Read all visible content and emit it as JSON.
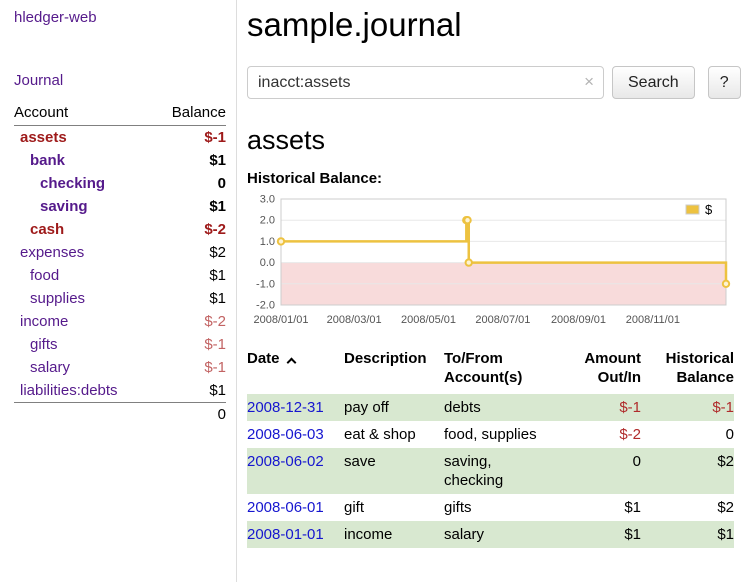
{
  "colors": {
    "link_purple": "#551a8b",
    "link_blue": "#1616cf",
    "negative_strong": "#9e1a1a",
    "negative": "#b02b2b",
    "negative_soft": "#c26363",
    "row_shade": "#d8e8d0",
    "chart_line": "#edc240",
    "chart_grid": "#e8e8e8",
    "chart_negative_area": "#f8dbdb"
  },
  "sidebar": {
    "app_title": "hledger-web",
    "journal_link": "Journal",
    "accounts_header": {
      "account": "Account",
      "balance": "Balance"
    },
    "accounts": [
      {
        "name": "assets",
        "indent": 1,
        "bold": true,
        "name_red": true,
        "balance": "$-1",
        "balance_red": true
      },
      {
        "name": "bank",
        "indent": 2,
        "bold": true,
        "name_red": false,
        "balance": "$1",
        "balance_red": false
      },
      {
        "name": "checking",
        "indent": 3,
        "bold": true,
        "name_red": false,
        "balance": "0",
        "balance_red": false
      },
      {
        "name": "saving",
        "indent": 3,
        "bold": true,
        "name_red": false,
        "balance": "$1",
        "balance_red": false
      },
      {
        "name": "cash",
        "indent": 2,
        "bold": true,
        "name_red": true,
        "balance": "$-2",
        "balance_red": true
      },
      {
        "name": "expenses",
        "indent": 1,
        "bold": false,
        "name_red": false,
        "balance": "$2",
        "balance_red": false
      },
      {
        "name": "food",
        "indent": 2,
        "bold": false,
        "name_red": false,
        "balance": "$1",
        "balance_red": false
      },
      {
        "name": "supplies",
        "indent": 2,
        "bold": false,
        "name_red": false,
        "balance": "$1",
        "balance_red": false
      },
      {
        "name": "income",
        "indent": 1,
        "bold": false,
        "name_red": false,
        "balance": "$-2",
        "balance_red": true
      },
      {
        "name": "gifts",
        "indent": 2,
        "bold": false,
        "name_red": false,
        "balance": "$-1",
        "balance_red": true
      },
      {
        "name": "salary",
        "indent": 2,
        "bold": false,
        "name_red": false,
        "balance": "$-1",
        "balance_red": true
      },
      {
        "name": "liabilities:debts",
        "indent": 1,
        "bold": false,
        "name_red": false,
        "balance": "$1",
        "balance_red": false
      }
    ],
    "total": "0"
  },
  "main": {
    "title": "sample.journal",
    "search": {
      "value": "inacct:assets",
      "button": "Search",
      "help_button": "?",
      "clear_icon": "×"
    },
    "account_heading": "assets",
    "chart_label": "Historical Balance:"
  },
  "chart_data": {
    "type": "line",
    "title": "Historical Balance",
    "step": true,
    "x_range": [
      "2008-01-01",
      "2008-12-31"
    ],
    "ylim": [
      -2,
      3
    ],
    "yticks": [
      3,
      2,
      1,
      0,
      -1,
      -2
    ],
    "xticks": [
      "2008/01/01",
      "2008/03/01",
      "2008/05/01",
      "2008/07/01",
      "2008/09/01",
      "2008/11/01"
    ],
    "series": [
      {
        "name": "$",
        "points": [
          [
            "2008-01-01",
            1
          ],
          [
            "2008-06-01",
            2
          ],
          [
            "2008-06-02",
            2
          ],
          [
            "2008-06-03",
            0
          ],
          [
            "2008-12-31",
            -1
          ]
        ]
      }
    ],
    "negative_region": {
      "from": 0,
      "to": -2
    },
    "legend_position": "top-right",
    "grid": true
  },
  "register": {
    "headers": {
      "date": "Date",
      "description": "Description",
      "accounts": "To/From Account(s)",
      "amount": "Amount Out/In",
      "balance": "Historical Balance"
    },
    "rows": [
      {
        "date": "2008-12-31",
        "description": "pay off",
        "accounts": "debts",
        "amount": "$-1",
        "amount_red": true,
        "balance": "$-1",
        "balance_red": true,
        "shaded": true
      },
      {
        "date": "2008-06-03",
        "description": "eat & shop",
        "accounts": "food, supplies",
        "amount": "$-2",
        "amount_red": true,
        "balance": "0",
        "balance_red": false,
        "shaded": false
      },
      {
        "date": "2008-06-02",
        "description": "save",
        "accounts": "saving, checking",
        "amount": "0",
        "amount_red": false,
        "balance": "$2",
        "balance_red": false,
        "shaded": true
      },
      {
        "date": "2008-06-01",
        "description": "gift",
        "accounts": "gifts",
        "amount": "$1",
        "amount_red": false,
        "balance": "$2",
        "balance_red": false,
        "shaded": false
      },
      {
        "date": "2008-01-01",
        "description": "income",
        "accounts": "salary",
        "amount": "$1",
        "amount_red": false,
        "balance": "$1",
        "balance_red": false,
        "shaded": true
      }
    ]
  }
}
